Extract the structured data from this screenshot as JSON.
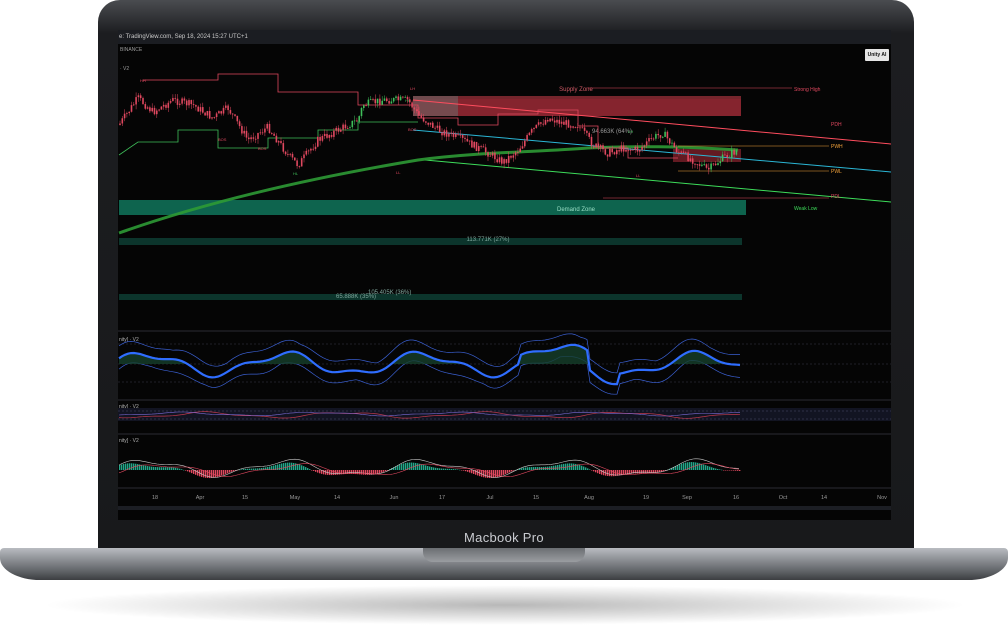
{
  "bezel": {
    "label": "Macbook Pro"
  },
  "header": {
    "source_line": "e: TradingView.com, Sep 18, 2024 15:27 UTC+1",
    "exchange": "BINANCE",
    "version_label": "· V2",
    "unity_button": "Unity AI"
  },
  "zones": {
    "supply": "Supply Zone",
    "demand": "Demand Zone",
    "supply_value": "94.663K (64%)",
    "range_top_value": "113.771K (27%)",
    "range_bottom_value_a": "105.405K (36%)",
    "range_bottom_value_b": "65.888K (35%)"
  },
  "levels": {
    "strong_high": "Strong High",
    "weak_low": "Weak Low",
    "pdh": "PDH",
    "pwh": "PWH",
    "pwl": "PWL",
    "pdl": "PDL"
  },
  "structure_labels": [
    "HH",
    "LH",
    "BOS",
    "BOS",
    "HL",
    "LL",
    "LL",
    "HH",
    "BOS",
    "LH"
  ],
  "panes": {
    "pane1": "nity] · V2",
    "pane2": "nity] · V2",
    "pane3": "nity] · V2"
  },
  "x_axis": [
    "18",
    "Apr",
    "15",
    "May",
    "14",
    "Jun",
    "17",
    "Jul",
    "15",
    "Aug",
    "19",
    "Sep",
    "16",
    "Oct",
    "14",
    "Nov"
  ],
  "colors": {
    "bull": "#3fbf5a",
    "bear": "#e0485f",
    "supply": "#c03a46",
    "demand": "#0f8a6a",
    "trend_red": "#ff4d5e",
    "trend_cyan": "#2bb7d6",
    "trend_green": "#3ddc5a",
    "ema": "#2e9a35",
    "osc_blue": "#2f6dff"
  }
}
